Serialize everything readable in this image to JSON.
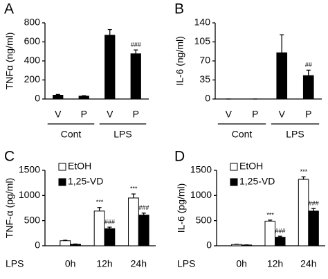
{
  "chart_data": [
    {
      "type": "bar",
      "panel": "A",
      "ylabel": "TNFα (ng/ml)",
      "categories": [
        "V",
        "P",
        "V",
        "P"
      ],
      "groups": [
        "Cont",
        "LPS"
      ],
      "series": [
        {
          "color": "#000000",
          "values": [
            40,
            30,
            670,
            475
          ],
          "errors": [
            8,
            5,
            60,
            40
          ],
          "marks": [
            null,
            null,
            null,
            "###"
          ]
        }
      ],
      "ylim": [
        0,
        800
      ],
      "yticks": [
        0,
        200,
        400,
        600,
        800
      ]
    },
    {
      "type": "bar",
      "panel": "B",
      "ylabel": "IL-6 (ng/ml)",
      "categories": [
        "V",
        "P",
        "V",
        "P"
      ],
      "groups": [
        "Cont",
        "LPS"
      ],
      "series": [
        {
          "color": "#000000",
          "values": [
            0,
            0,
            85,
            43
          ],
          "errors": [
            0,
            0,
            33,
            10
          ],
          "marks": [
            null,
            null,
            null,
            "##"
          ]
        }
      ],
      "ylim": [
        0,
        140
      ],
      "yticks": [
        0,
        35,
        70,
        105,
        140
      ]
    },
    {
      "type": "bar",
      "panel": "C",
      "ylabel": "TNF-α (pg/ml)",
      "x_label": "LPS",
      "categories": [
        "0h",
        "12h",
        "24h"
      ],
      "legend": "top-left",
      "series": [
        {
          "name": "EtOH",
          "color": "#ffffff",
          "values": [
            100,
            690,
            950
          ],
          "errors": [
            10,
            70,
            80
          ],
          "marks": [
            null,
            "***",
            "***"
          ]
        },
        {
          "name": "1,25-VD",
          "color": "#000000",
          "values": [
            30,
            340,
            610
          ],
          "errors": [
            5,
            30,
            40
          ],
          "marks": [
            null,
            "###",
            "###"
          ]
        }
      ],
      "ylim": [
        0,
        1500
      ],
      "yticks": [
        0,
        500,
        1000,
        1500
      ]
    },
    {
      "type": "bar",
      "panel": "D",
      "ylabel": "IL-6 (pg/ml)",
      "x_label": "LPS",
      "categories": [
        "0h",
        "12h",
        "24h"
      ],
      "legend": "top-left",
      "series": [
        {
          "name": "EtOH",
          "color": "#ffffff",
          "values": [
            25,
            490,
            1320
          ],
          "errors": [
            5,
            20,
            50
          ],
          "marks": [
            null,
            "***",
            "***"
          ]
        },
        {
          "name": "1,25-VD",
          "color": "#000000",
          "values": [
            15,
            170,
            690
          ],
          "errors": [
            3,
            20,
            50
          ],
          "marks": [
            null,
            "###",
            "###"
          ]
        }
      ],
      "ylim": [
        0,
        1500
      ],
      "yticks": [
        0,
        500,
        1000,
        1500
      ]
    }
  ]
}
